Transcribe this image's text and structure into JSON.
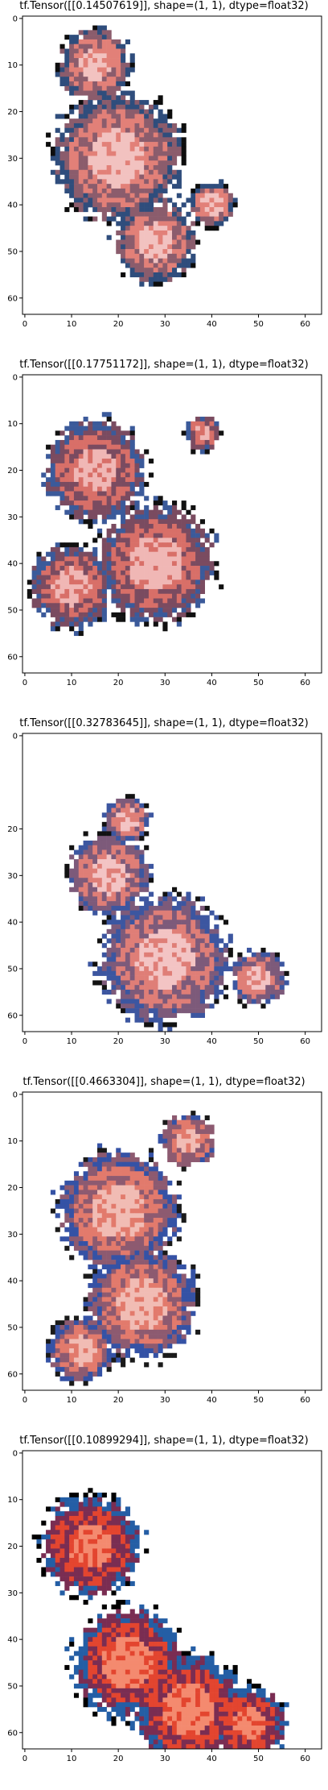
{
  "figure": {
    "panels": [
      {
        "title": "tf.Tensor([[0.14507619]], shape=(1, 1), dtype=float32)",
        "palette": [
          "#f2c2c0",
          "#e28078",
          "#8b5c6c",
          "#2f4d7c",
          "#0d0d0d",
          "#ffffff"
        ],
        "x_ticks": [
          "0",
          "10",
          "20",
          "30",
          "40",
          "50",
          "60"
        ],
        "y_ticks": [
          "0",
          "10",
          "20",
          "30",
          "40",
          "50",
          "60"
        ]
      },
      {
        "title": "tf.Tensor([[0.17751172]], shape=(1, 1), dtype=float32)",
        "palette": [
          "#f0b7b5",
          "#d86f68",
          "#7a4b60",
          "#3b5a9a",
          "#111111",
          "#ffffff"
        ],
        "x_ticks": [
          "0",
          "10",
          "20",
          "30",
          "40",
          "50",
          "60"
        ],
        "y_ticks": [
          "0",
          "10",
          "20",
          "30",
          "40",
          "50",
          "60"
        ]
      },
      {
        "title": "tf.Tensor([[0.32783645]], shape=(1, 1), dtype=float32)",
        "palette": [
          "#f3c4c4",
          "#df7e77",
          "#7d5a7a",
          "#3c56a0",
          "#121212",
          "#ffffff"
        ],
        "x_ticks": [
          "0",
          "10",
          "20",
          "30",
          "40",
          "50",
          "60"
        ],
        "y_ticks": [
          "0",
          "20",
          "30",
          "40",
          "50",
          "60"
        ]
      },
      {
        "title": "tf.Tensor([[0.4663304]], shape=(1, 1), dtype=float32)",
        "palette": [
          "#f1bcb4",
          "#e27a6c",
          "#8d5a70",
          "#3552a5",
          "#1a1a1a",
          "#ffffff"
        ],
        "x_ticks": [
          "0",
          "10",
          "20",
          "30",
          "40",
          "50",
          "60"
        ],
        "y_ticks": [
          "0",
          "10",
          "20",
          "30",
          "40",
          "50",
          "60"
        ]
      },
      {
        "title": "tf.Tensor([[0.10899294]], shape=(1, 1), dtype=float32)",
        "palette": [
          "#f48a6f",
          "#e3452f",
          "#7a2d52",
          "#245ea5",
          "#000000",
          "#ffffff"
        ],
        "x_ticks": [
          "0",
          "10",
          "20",
          "30",
          "40",
          "50",
          "60"
        ],
        "y_ticks": [
          "0",
          "10",
          "20",
          "30",
          "40",
          "50",
          "60"
        ]
      }
    ]
  }
}
